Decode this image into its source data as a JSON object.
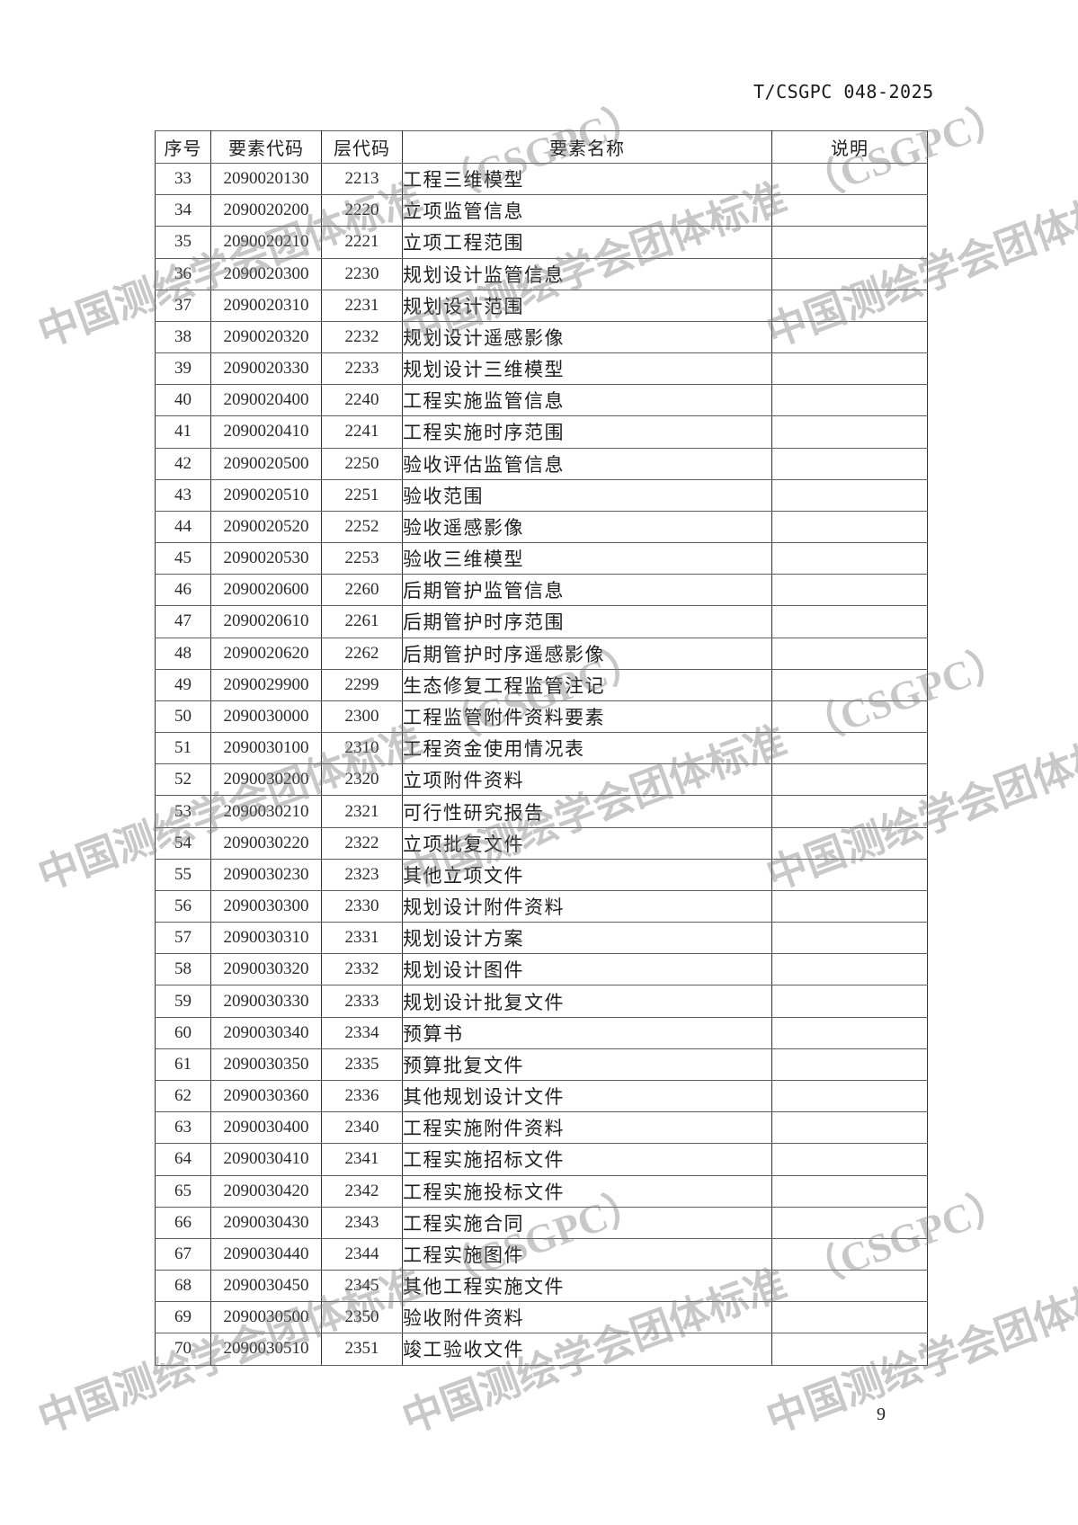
{
  "page": {
    "doc_number": "T/CSGPC 048-2025",
    "page_number": "9",
    "watermark_text": "中国测绘学会团体标准　（CSGPC）"
  },
  "table": {
    "headers": [
      "序号",
      "要素代码",
      "层代码",
      "要素名称",
      "说明"
    ],
    "rows": [
      {
        "no": "33",
        "code": "2090020130",
        "layer": "2213",
        "name": "工程三维模型",
        "indent": 3,
        "note": ""
      },
      {
        "no": "34",
        "code": "2090020200",
        "layer": "2220",
        "name": "立项监管信息",
        "indent": 2,
        "note": ""
      },
      {
        "no": "35",
        "code": "2090020210",
        "layer": "2221",
        "name": "立项工程范围",
        "indent": 3,
        "note": ""
      },
      {
        "no": "36",
        "code": "2090020300",
        "layer": "2230",
        "name": "规划设计监管信息",
        "indent": 2,
        "note": ""
      },
      {
        "no": "37",
        "code": "2090020310",
        "layer": "2231",
        "name": "规划设计范围",
        "indent": 3,
        "note": ""
      },
      {
        "no": "38",
        "code": "2090020320",
        "layer": "2232",
        "name": "规划设计遥感影像",
        "indent": 3,
        "note": ""
      },
      {
        "no": "39",
        "code": "2090020330",
        "layer": "2233",
        "name": "规划设计三维模型",
        "indent": 3,
        "note": ""
      },
      {
        "no": "40",
        "code": "2090020400",
        "layer": "2240",
        "name": "工程实施监管信息",
        "indent": 2,
        "note": ""
      },
      {
        "no": "41",
        "code": "2090020410",
        "layer": "2241",
        "name": "工程实施时序范围",
        "indent": 3,
        "note": ""
      },
      {
        "no": "42",
        "code": "2090020500",
        "layer": "2250",
        "name": "验收评估监管信息",
        "indent": 2,
        "note": ""
      },
      {
        "no": "43",
        "code": "2090020510",
        "layer": "2251",
        "name": "验收范围",
        "indent": 3,
        "note": ""
      },
      {
        "no": "44",
        "code": "2090020520",
        "layer": "2252",
        "name": "验收遥感影像",
        "indent": 3,
        "note": ""
      },
      {
        "no": "45",
        "code": "2090020530",
        "layer": "2253",
        "name": "验收三维模型",
        "indent": 3,
        "note": ""
      },
      {
        "no": "46",
        "code": "2090020600",
        "layer": "2260",
        "name": "后期管护监管信息",
        "indent": 2,
        "note": ""
      },
      {
        "no": "47",
        "code": "2090020610",
        "layer": "2261",
        "name": "后期管护时序范围",
        "indent": 3,
        "note": ""
      },
      {
        "no": "48",
        "code": "2090020620",
        "layer": "2262",
        "name": "后期管护时序遥感影像",
        "indent": 3,
        "note": ""
      },
      {
        "no": "49",
        "code": "2090029900",
        "layer": "2299",
        "name": "生态修复工程监管注记",
        "indent": 2,
        "note": ""
      },
      {
        "no": "50",
        "code": "2090030000",
        "layer": "2300",
        "name": "工程监管附件资料要素",
        "indent": 1,
        "note": ""
      },
      {
        "no": "51",
        "code": "2090030100",
        "layer": "2310",
        "name": "工程资金使用情况表",
        "indent": 2,
        "note": ""
      },
      {
        "no": "52",
        "code": "2090030200",
        "layer": "2320",
        "name": "立项附件资料",
        "indent": 2,
        "note": ""
      },
      {
        "no": "53",
        "code": "2090030210",
        "layer": "2321",
        "name": "可行性研究报告",
        "indent": 3,
        "note": ""
      },
      {
        "no": "54",
        "code": "2090030220",
        "layer": "2322",
        "name": "立项批复文件",
        "indent": 3,
        "note": ""
      },
      {
        "no": "55",
        "code": "2090030230",
        "layer": "2323",
        "name": "其他立项文件",
        "indent": 3,
        "note": ""
      },
      {
        "no": "56",
        "code": "2090030300",
        "layer": "2330",
        "name": "规划设计附件资料",
        "indent": 2,
        "note": ""
      },
      {
        "no": "57",
        "code": "2090030310",
        "layer": "2331",
        "name": "规划设计方案",
        "indent": 3,
        "note": ""
      },
      {
        "no": "58",
        "code": "2090030320",
        "layer": "2332",
        "name": "规划设计图件",
        "indent": 3,
        "note": ""
      },
      {
        "no": "59",
        "code": "2090030330",
        "layer": "2333",
        "name": "规划设计批复文件",
        "indent": 3,
        "note": ""
      },
      {
        "no": "60",
        "code": "2090030340",
        "layer": "2334",
        "name": "预算书",
        "indent": 3,
        "note": ""
      },
      {
        "no": "61",
        "code": "2090030350",
        "layer": "2335",
        "name": "预算批复文件",
        "indent": 3,
        "note": ""
      },
      {
        "no": "62",
        "code": "2090030360",
        "layer": "2336",
        "name": "其他规划设计文件",
        "indent": 3,
        "note": ""
      },
      {
        "no": "63",
        "code": "2090030400",
        "layer": "2340",
        "name": "工程实施附件资料",
        "indent": 2,
        "note": ""
      },
      {
        "no": "64",
        "code": "2090030410",
        "layer": "2341",
        "name": "工程实施招标文件",
        "indent": 3,
        "note": ""
      },
      {
        "no": "65",
        "code": "2090030420",
        "layer": "2342",
        "name": "工程实施投标文件",
        "indent": 3,
        "note": ""
      },
      {
        "no": "66",
        "code": "2090030430",
        "layer": "2343",
        "name": "工程实施合同",
        "indent": 3,
        "note": ""
      },
      {
        "no": "67",
        "code": "2090030440",
        "layer": "2344",
        "name": "工程实施图件",
        "indent": 3,
        "note": ""
      },
      {
        "no": "68",
        "code": "2090030450",
        "layer": "2345",
        "name": "其他工程实施文件",
        "indent": 3,
        "note": ""
      },
      {
        "no": "69",
        "code": "2090030500",
        "layer": "2350",
        "name": "验收附件资料",
        "indent": 2,
        "note": ""
      },
      {
        "no": "70",
        "code": "2090030510",
        "layer": "2351",
        "name": "竣工验收文件",
        "indent": 3,
        "note": ""
      }
    ]
  }
}
